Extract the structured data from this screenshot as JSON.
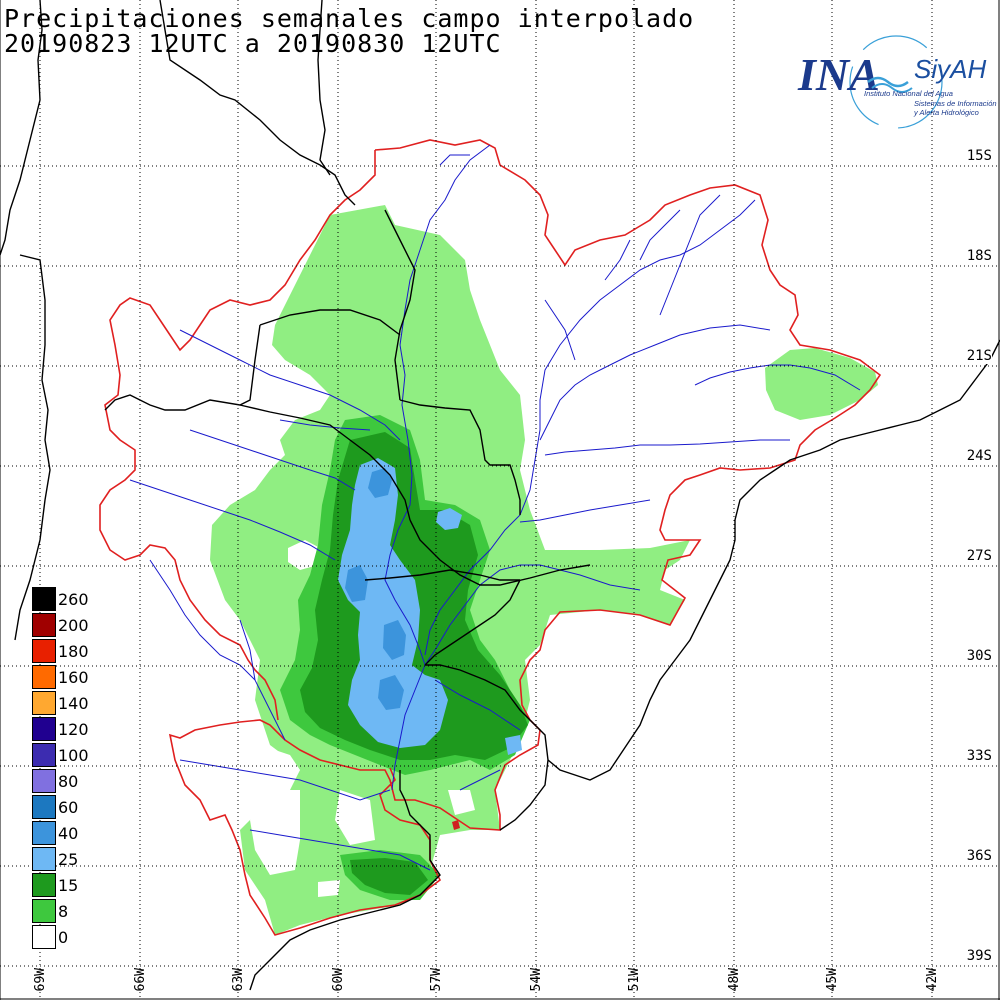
{
  "title": {
    "line1": "Precipitaciones semanales campo interpolado",
    "line2": "20190823 12UTC a 20190830 12UTC"
  },
  "logo": {
    "main": "INA",
    "brand": "SiyAH",
    "subtitle": "Instituto Nacional del Agua",
    "tagline1": "Sistemas de Información",
    "tagline2": "y Alerta Hidrológico",
    "colors": {
      "primary": "#1b3a8c",
      "wave": "#3aa0d8"
    }
  },
  "lat_labels": [
    "15S",
    "18S",
    "21S",
    "24S",
    "27S",
    "30S",
    "33S",
    "36S",
    "39S"
  ],
  "lon_labels": [
    "69W",
    "66W",
    "63W",
    "60W",
    "57W",
    "54W",
    "51W",
    "48W",
    "45W",
    "42W"
  ],
  "legend": [
    {
      "label": "260",
      "color": "#000000"
    },
    {
      "label": "200",
      "color": "#a00000"
    },
    {
      "label": "180",
      "color": "#e82000"
    },
    {
      "label": "160",
      "color": "#ff6a00"
    },
    {
      "label": "140",
      "color": "#ffa830"
    },
    {
      "label": "120",
      "color": "#200090"
    },
    {
      "label": "100",
      "color": "#3c2cb0"
    },
    {
      "label": "80",
      "color": "#8070e0"
    },
    {
      "label": "60",
      "color": "#1c78c0"
    },
    {
      "label": "40",
      "color": "#3c94dc"
    },
    {
      "label": "25",
      "color": "#6eb8f4"
    },
    {
      "label": "15",
      "color": "#1e9a1e"
    },
    {
      "label": "8",
      "color": "#3ec83e"
    },
    {
      "label": "0",
      "color": "#ffffff"
    }
  ],
  "map_colors": {
    "basin_outline": "#e02020",
    "rivers": "#1a1acc",
    "borders": "#000000",
    "grid": "#000000",
    "light_green": "#90ee82",
    "mid_green": "#3ec83e",
    "dark_green": "#1e9a1e",
    "light_blue": "#6eb8f4",
    "mid_blue": "#3c94dc",
    "deep_blue": "#1c78c0"
  }
}
